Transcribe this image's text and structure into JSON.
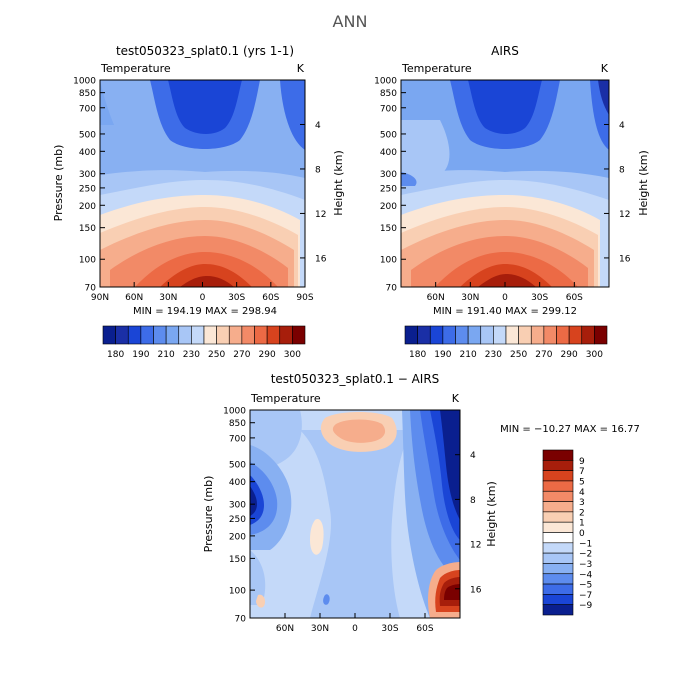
{
  "page_title": "ANN",
  "colors": {
    "cold_deep": "#0a1f8f",
    "neutral": "#ffffff",
    "warm_deep": "#7a0000"
  },
  "chart_data": [
    {
      "type": "heatmap",
      "title": "test050323_splat0.1 (yrs 1-1)",
      "variable_label": "Temperature",
      "units": "K",
      "xlabel": "",
      "ylabel": "Pressure (mb)",
      "right_axis_label": "Height (km)",
      "x_ticks": [
        "90N",
        "60N",
        "30N",
        "0",
        "30S",
        "60S",
        "90S"
      ],
      "y_ticks": [
        "70",
        "100",
        "150",
        "200",
        "250",
        "300",
        "400",
        "500",
        "700",
        "850",
        "1000"
      ],
      "y_ticks_right": [
        "16",
        "12",
        "8",
        "4"
      ],
      "ylim": [
        1000,
        70
      ],
      "stats": "MIN = 194.19   MAX = 298.94",
      "colorbar": {
        "orientation": "horizontal",
        "labels": [
          "180",
          "190",
          "210",
          "230",
          "250",
          "270",
          "290",
          "300"
        ]
      }
    },
    {
      "type": "heatmap",
      "title": "AIRS",
      "variable_label": "Temperature",
      "units": "K",
      "xlabel": "",
      "ylabel": "Pressure (mb)",
      "right_axis_label": "Height (km)",
      "x_ticks": [
        "60N",
        "30N",
        "0",
        "30S",
        "60S"
      ],
      "y_ticks": [
        "70",
        "100",
        "150",
        "200",
        "250",
        "300",
        "400",
        "500",
        "700",
        "850",
        "1000"
      ],
      "y_ticks_right": [
        "16",
        "12",
        "8",
        "4"
      ],
      "ylim": [
        1000,
        70
      ],
      "stats": "MIN = 191.40   MAX = 299.12",
      "colorbar": {
        "orientation": "horizontal",
        "labels": [
          "180",
          "190",
          "210",
          "230",
          "250",
          "270",
          "290",
          "300"
        ]
      }
    },
    {
      "type": "heatmap",
      "title": "test050323_splat0.1 − AIRS",
      "variable_label": "Temperature",
      "units": "K",
      "xlabel": "",
      "ylabel": "Pressure (mb)",
      "right_axis_label": "Height (km)",
      "x_ticks": [
        "60N",
        "30N",
        "0",
        "30S",
        "60S"
      ],
      "y_ticks": [
        "70",
        "100",
        "150",
        "200",
        "250",
        "300",
        "400",
        "500",
        "700",
        "850",
        "1000"
      ],
      "y_ticks_right": [
        "16",
        "12",
        "8",
        "4"
      ],
      "ylim": [
        1000,
        70
      ],
      "stats": "MIN = −10.27   MAX =   16.77",
      "colorbar": {
        "orientation": "vertical",
        "labels": [
          "9",
          "7",
          "5",
          "4",
          "3",
          "2",
          "1",
          "0",
          "−1",
          "−2",
          "−3",
          "−4",
          "−5",
          "−7",
          "−9"
        ]
      }
    }
  ]
}
